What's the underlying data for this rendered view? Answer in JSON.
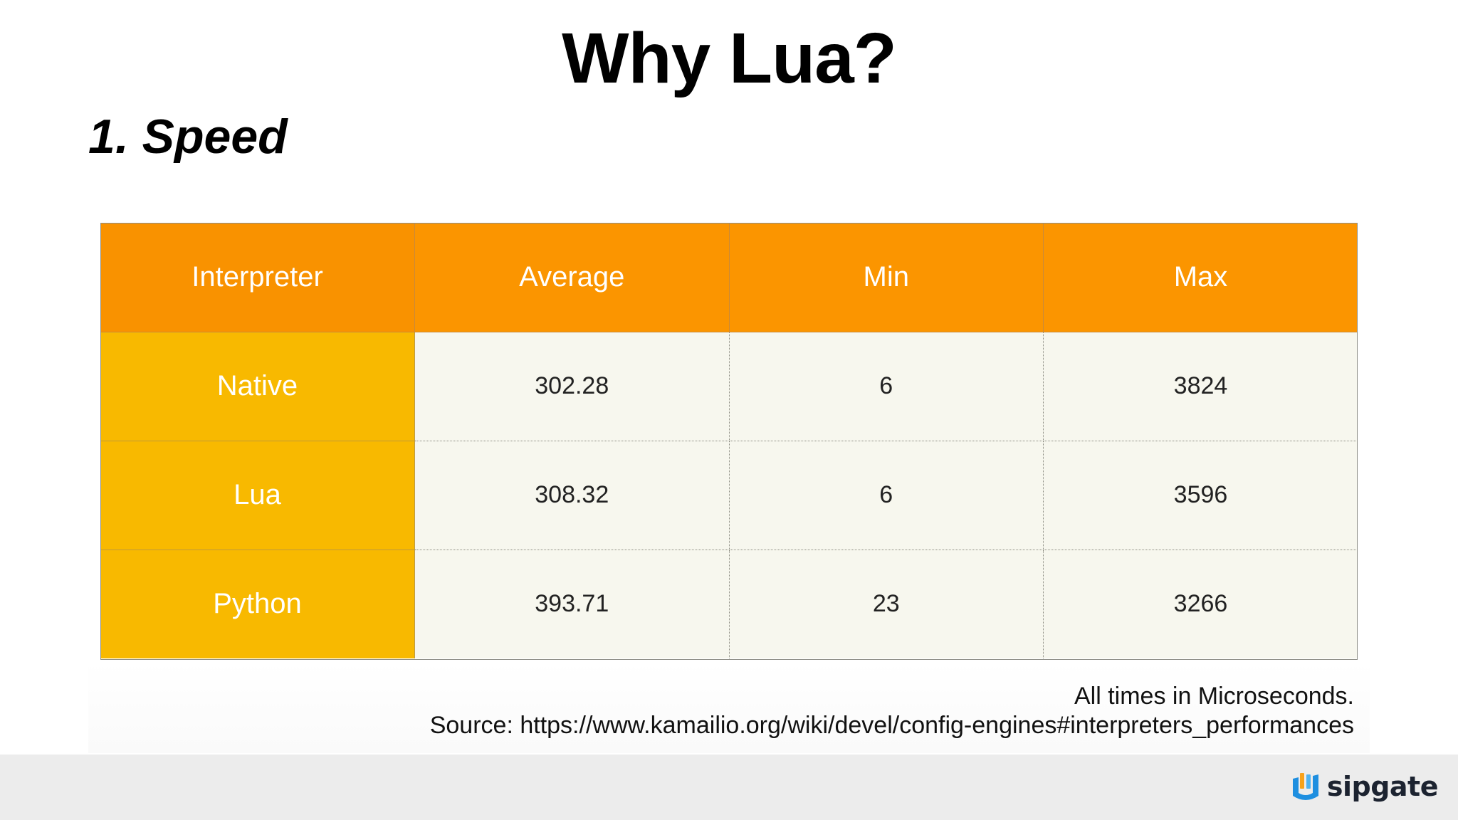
{
  "slide": {
    "title": "Why Lua?",
    "section": "1. Speed"
  },
  "table": {
    "headers": [
      "Interpreter",
      "Average",
      "Min",
      "Max"
    ],
    "rows": [
      {
        "label": "Native",
        "average": "302.28",
        "min": "6",
        "max": "3824"
      },
      {
        "label": "Lua",
        "average": "308.32",
        "min": "6",
        "max": "3596"
      },
      {
        "label": "Python",
        "average": "393.71",
        "min": "23",
        "max": "3266"
      }
    ]
  },
  "caption": {
    "units": "All times in Microseconds.",
    "source": "Source: https://www.kamailio.org/wiki/devel/config-engines#interpreters_performances"
  },
  "footer": {
    "brand": "sipgate"
  },
  "colors": {
    "header_bg": "#fb9500",
    "row_label_bg": "#f8b900",
    "cell_bg": "#f7f7ee",
    "footer_bg": "#ececec",
    "brand_blue": "#1e8fe0",
    "brand_orange": "#f7a21b"
  },
  "icons": {
    "brand_mark": "sipgate-logo-icon"
  }
}
